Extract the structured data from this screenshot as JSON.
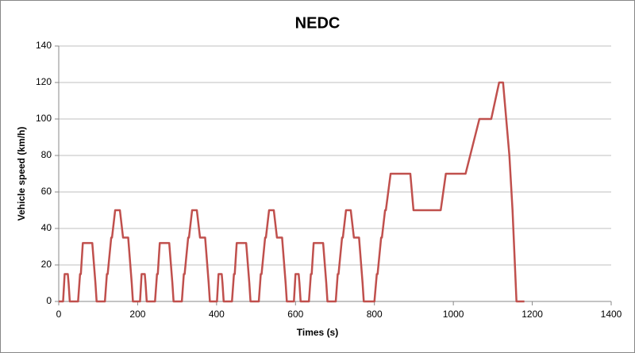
{
  "chart_data": {
    "type": "line",
    "title": "NEDC",
    "xlabel": "Times (s)",
    "ylabel": "Vehicle speed (km/h)",
    "xlim": [
      0,
      1400
    ],
    "xticks": [
      0,
      200,
      400,
      600,
      800,
      1000,
      1200,
      1400
    ],
    "ylim": [
      0,
      140
    ],
    "yticks": [
      0,
      20,
      40,
      60,
      80,
      100,
      120,
      140
    ],
    "grid": true,
    "series": [
      {
        "color": "#c0504d",
        "x": [
          0,
          11,
          15,
          23,
          25,
          28,
          49,
          54,
          56,
          61,
          85,
          93,
          96,
          117,
          122,
          124,
          133,
          135,
          143,
          155,
          163,
          176,
          185,
          188,
          195,
          206,
          210,
          218,
          220,
          223,
          244,
          249,
          251,
          256,
          280,
          288,
          291,
          312,
          317,
          319,
          328,
          330,
          338,
          350,
          358,
          371,
          380,
          383,
          390,
          401,
          405,
          413,
          415,
          418,
          439,
          444,
          446,
          451,
          475,
          483,
          486,
          507,
          512,
          514,
          523,
          525,
          533,
          545,
          553,
          566,
          575,
          578,
          585,
          596,
          600,
          608,
          610,
          613,
          634,
          639,
          641,
          646,
          670,
          678,
          681,
          702,
          707,
          709,
          718,
          720,
          728,
          740,
          748,
          761,
          770,
          773,
          780,
          800,
          806,
          808,
          817,
          819,
          827,
          829,
          841,
          891,
          899,
          968,
          981,
          1031,
          1066,
          1096,
          1116,
          1126,
          1142,
          1150,
          1160,
          1180
        ],
        "values": [
          0,
          0,
          15,
          15,
          10,
          0,
          0,
          15,
          15,
          32,
          32,
          10,
          0,
          0,
          15,
          15,
          35,
          35,
          50,
          50,
          35,
          35,
          10,
          0,
          0,
          0,
          15,
          15,
          10,
          0,
          0,
          15,
          15,
          32,
          32,
          10,
          0,
          0,
          15,
          15,
          35,
          35,
          50,
          50,
          35,
          35,
          10,
          0,
          0,
          0,
          15,
          15,
          10,
          0,
          0,
          15,
          15,
          32,
          32,
          10,
          0,
          0,
          15,
          15,
          35,
          35,
          50,
          50,
          35,
          35,
          10,
          0,
          0,
          0,
          15,
          15,
          10,
          0,
          0,
          15,
          15,
          32,
          32,
          10,
          0,
          0,
          15,
          15,
          35,
          35,
          50,
          50,
          35,
          35,
          10,
          0,
          0,
          0,
          15,
          15,
          35,
          35,
          50,
          50,
          70,
          70,
          50,
          50,
          70,
          70,
          100,
          100,
          120,
          120,
          80,
          50,
          0,
          0
        ]
      }
    ]
  }
}
